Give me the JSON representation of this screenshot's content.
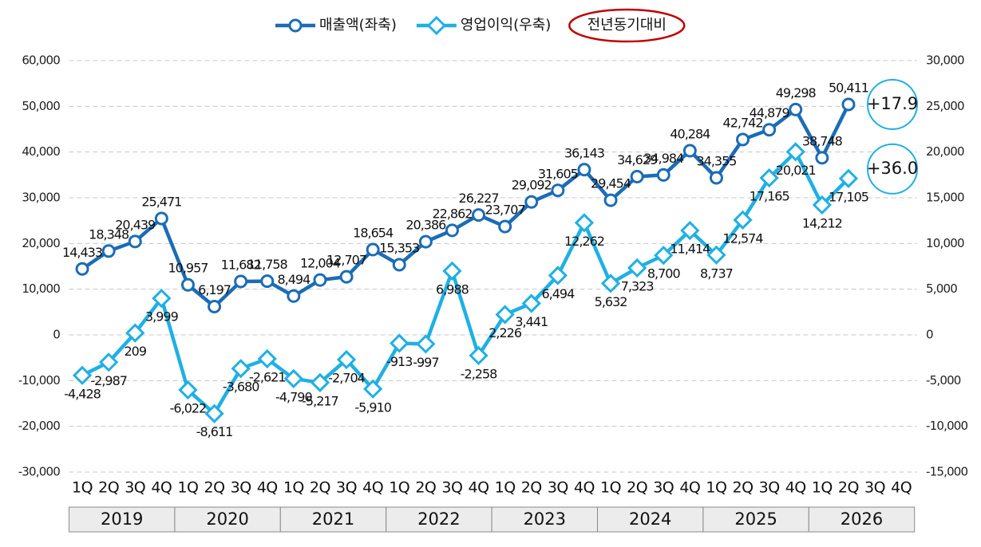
{
  "chart_data": {
    "type": "line",
    "categories": [
      "1Q",
      "2Q",
      "3Q",
      "4Q",
      "1Q",
      "2Q",
      "3Q",
      "4Q",
      "1Q",
      "2Q",
      "3Q",
      "4Q",
      "1Q",
      "2Q",
      "3Q",
      "4Q",
      "1Q",
      "2Q",
      "3Q",
      "4Q",
      "1Q",
      "2Q",
      "3Q",
      "4Q",
      "1Q",
      "2Q",
      "3Q",
      "4Q",
      "1Q",
      "2Q",
      "3Q",
      "4Q"
    ],
    "years": [
      "2019",
      "2020",
      "2021",
      "2022",
      "2023",
      "2024",
      "2025",
      "2026"
    ],
    "series": [
      {
        "name": "매출액(좌축)",
        "color": "#1c6cb6",
        "marker": "circle",
        "values": [
          14433,
          18348,
          20439,
          25471,
          10957,
          6197,
          11682,
          11758,
          8494,
          12004,
          12707,
          18654,
          15353,
          20386,
          22862,
          26227,
          23707,
          29092,
          31605,
          36143,
          29454,
          34629,
          34984,
          40284,
          34355,
          42742,
          44879,
          49298,
          38748,
          50411,
          null,
          null
        ],
        "value_labels": [
          "14,433",
          "18,348",
          "20,439",
          "25,471",
          "10,957",
          "6,197",
          "11,682",
          "11,758",
          "8,494",
          "12,004",
          "12,707",
          "18,654",
          "15,353",
          "20,386",
          "22,862",
          "26,227",
          "23,707",
          "29,092",
          "31,605",
          "36,143",
          "29,454",
          "34,629",
          "34,984",
          "40,284",
          "34,355",
          "42,742",
          "44,879",
          "49,298",
          "38,748",
          "50,411",
          null,
          null
        ]
      },
      {
        "name": "영업이익(우축)",
        "color": "#1fb0e4",
        "marker": "diamond",
        "axis": "y2",
        "values": [
          -4428,
          -2987,
          209,
          3999,
          -6022,
          -8611,
          -3680,
          -2621,
          -4790,
          -5217,
          -2704,
          -5910,
          -913,
          -997,
          6988,
          -2258,
          2226,
          3441,
          6494,
          12262,
          5632,
          7323,
          8700,
          11414,
          8737,
          12574,
          17165,
          20021,
          14212,
          17105,
          null,
          null
        ],
        "value_labels": [
          "-4,428",
          "-2,987",
          "209",
          "3,999",
          "-6,022",
          "-8,611",
          "-3,680",
          "-2,621",
          "-4,790",
          "-5,217",
          "-2,704",
          "-5,910",
          "-913",
          "-997",
          "6,988",
          "-2,258",
          "2,226",
          "3,441",
          "6,494",
          "12,262",
          "5,632",
          "7,323",
          "8,700",
          "11,414",
          "8,737",
          "12,574",
          "17,165",
          "20,021",
          "14,212",
          "17,105",
          null,
          null
        ]
      }
    ],
    "ylim": [
      -30000,
      60000
    ],
    "yticks": [
      {
        "value": -30000,
        "label": "-30,000"
      },
      {
        "value": -20000,
        "label": "-20,000"
      },
      {
        "value": -10000,
        "label": "-10,000"
      },
      0,
      {
        "value": 10000,
        "label": "10,000"
      },
      {
        "value": 20000,
        "label": "20,000"
      },
      {
        "value": 30000,
        "label": "30,000"
      },
      {
        "value": 40000,
        "label": "40,000"
      },
      {
        "value": 50000,
        "label": "50,000"
      },
      {
        "value": 60000,
        "label": "60,000"
      }
    ],
    "y2lim": [
      -15000,
      30000
    ],
    "y2ticks": [
      {
        "value": -15000,
        "label": "-15,000"
      },
      {
        "value": -10000,
        "label": "-10,000"
      },
      {
        "value": -5000,
        "label": "-5,000"
      },
      0,
      {
        "value": 5000,
        "label": "5,000"
      },
      {
        "value": 10000,
        "label": "10,000"
      },
      {
        "value": 15000,
        "label": "15,000"
      },
      {
        "value": 20000,
        "label": "20,000"
      },
      {
        "value": 25000,
        "label": "25,000"
      },
      {
        "value": 30000,
        "label": "30,000"
      }
    ],
    "grid": true,
    "legend_note": "전년동기대비",
    "annotations": [
      "+17.9",
      "+36.0"
    ]
  }
}
